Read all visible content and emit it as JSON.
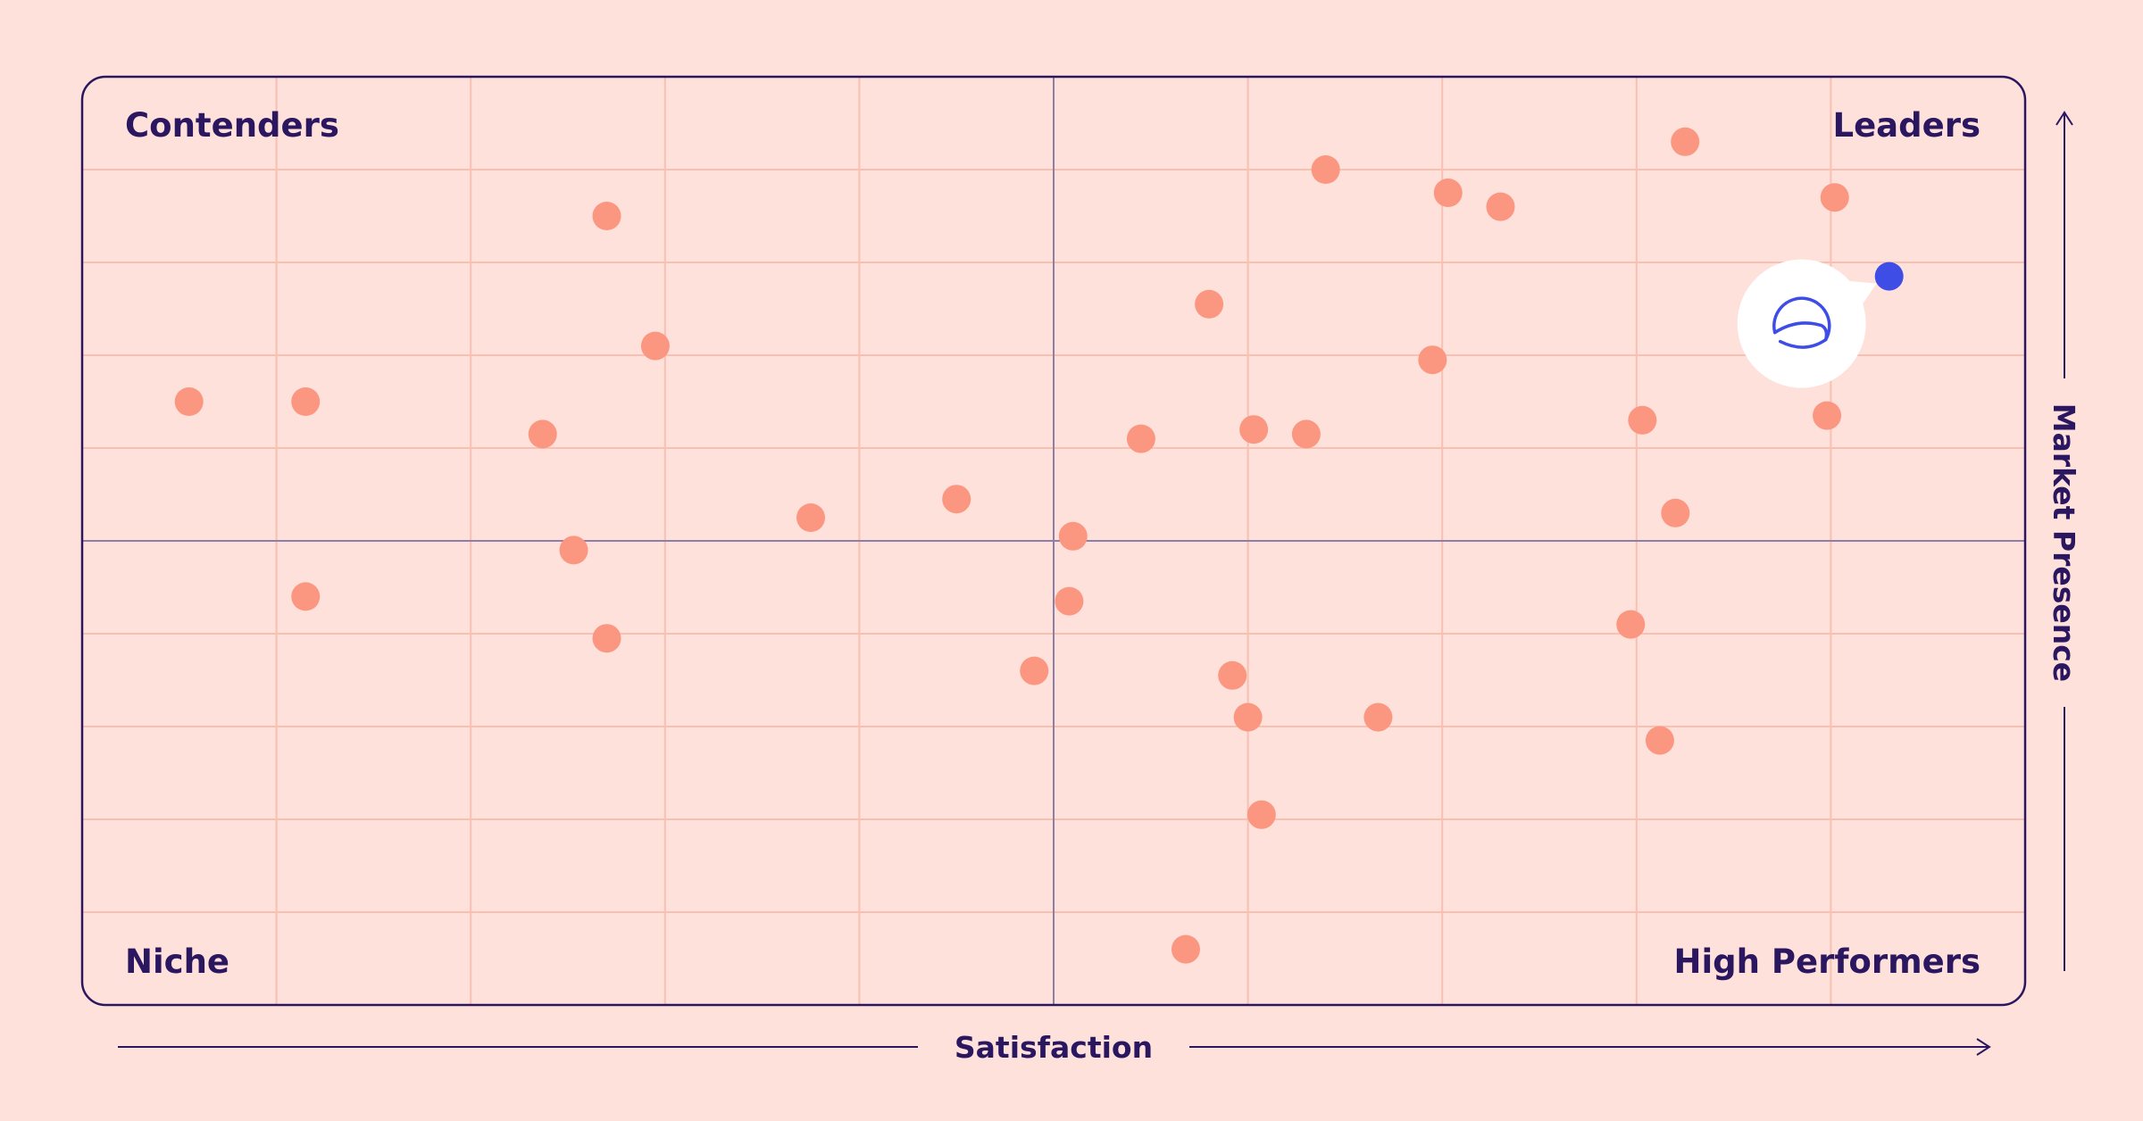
{
  "chart_data": {
    "type": "scatter",
    "quadrant_labels": {
      "top_left": "Contenders",
      "top_right": "Leaders",
      "bottom_left": "Niche",
      "bottom_right": "High Performers"
    },
    "xlabel": "Satisfaction",
    "ylabel": "Market Presence",
    "xlim": [
      0,
      10
    ],
    "ylim": [
      0,
      10
    ],
    "grid": true,
    "colors": {
      "background": "#fee1da",
      "grid": "#f8bfb3",
      "frame": "#2a1760",
      "midline": "#8d7fa8",
      "point": "#fb9680",
      "highlight": "#3e4de6",
      "text": "#2a1760"
    },
    "highlight_icon": "brand-logo-icon",
    "highlight": {
      "x": 9.3,
      "y": 7.85
    },
    "points": [
      {
        "x": 0.55,
        "y": 6.5
      },
      {
        "x": 1.15,
        "y": 6.5
      },
      {
        "x": 1.15,
        "y": 4.4
      },
      {
        "x": 2.37,
        "y": 6.15
      },
      {
        "x": 2.53,
        "y": 4.9
      },
      {
        "x": 2.7,
        "y": 8.5
      },
      {
        "x": 2.7,
        "y": 3.95
      },
      {
        "x": 2.95,
        "y": 7.1
      },
      {
        "x": 3.75,
        "y": 5.25
      },
      {
        "x": 4.5,
        "y": 5.45
      },
      {
        "x": 4.9,
        "y": 3.6
      },
      {
        "x": 5.08,
        "y": 4.35
      },
      {
        "x": 5.1,
        "y": 5.05
      },
      {
        "x": 5.45,
        "y": 6.1
      },
      {
        "x": 5.68,
        "y": 0.6
      },
      {
        "x": 5.8,
        "y": 7.55
      },
      {
        "x": 5.92,
        "y": 3.55
      },
      {
        "x": 6.0,
        "y": 3.1
      },
      {
        "x": 6.03,
        "y": 6.2
      },
      {
        "x": 6.07,
        "y": 2.05
      },
      {
        "x": 6.3,
        "y": 6.15
      },
      {
        "x": 6.4,
        "y": 9.0
      },
      {
        "x": 6.67,
        "y": 3.1
      },
      {
        "x": 6.95,
        "y": 6.95
      },
      {
        "x": 7.03,
        "y": 8.75
      },
      {
        "x": 7.3,
        "y": 8.6
      },
      {
        "x": 7.97,
        "y": 4.1
      },
      {
        "x": 8.03,
        "y": 6.3
      },
      {
        "x": 8.12,
        "y": 2.85
      },
      {
        "x": 8.2,
        "y": 5.3
      },
      {
        "x": 8.25,
        "y": 9.3
      },
      {
        "x": 8.98,
        "y": 6.35
      },
      {
        "x": 9.02,
        "y": 8.7
      }
    ]
  }
}
